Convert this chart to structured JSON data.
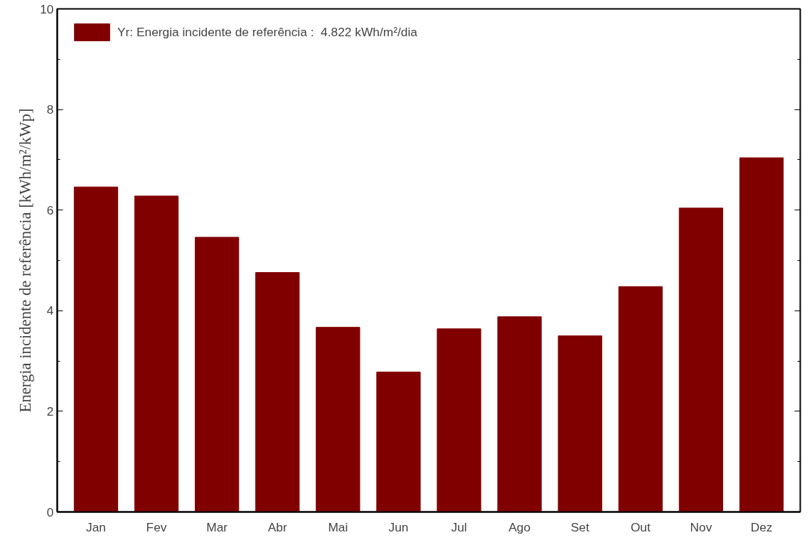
{
  "chart_data": {
    "type": "bar",
    "ylabel": "Energia incidente de referência [kWh/m²/kWp]",
    "categories": [
      "Jan",
      "Fev",
      "Mar",
      "Abr",
      "Mai",
      "Jun",
      "Jul",
      "Ago",
      "Set",
      "Out",
      "Nov",
      "Dez"
    ],
    "series": [
      {
        "name": "Yr: Energia incidente de referência :  4.822 kWh/m²/dia",
        "color": "#800000",
        "values": [
          6.46,
          6.28,
          5.46,
          4.76,
          3.67,
          2.78,
          3.64,
          3.88,
          3.5,
          4.48,
          6.04,
          7.04
        ]
      }
    ],
    "ylim": [
      0,
      10
    ],
    "yticks": [
      0,
      2,
      4,
      6,
      8,
      10
    ],
    "grid": false,
    "legend": "top left"
  }
}
